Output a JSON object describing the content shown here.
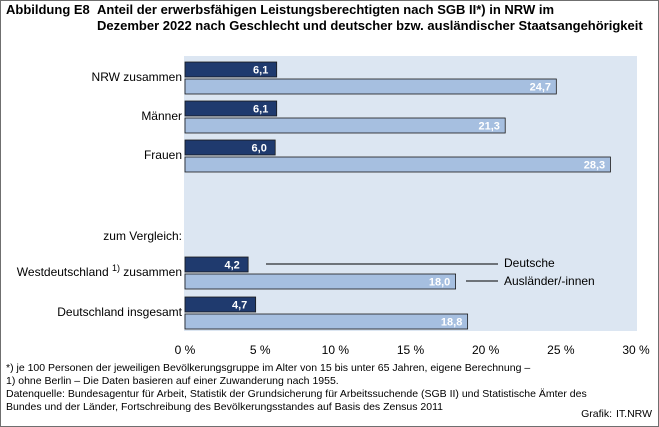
{
  "header": {
    "prefix": "Abbildung E8",
    "line1": "Anteil der erwerbsfähigen Leistungsberechtigten nach SGB II*) in NRW im",
    "line2": "Dezember 2022 nach Geschlecht und deutscher bzw. ausländischer Staatsangehörigkeit"
  },
  "chart_data": {
    "type": "bar",
    "orientation": "horizontal",
    "xlim": [
      0,
      30
    ],
    "xticks": [
      "0 %",
      "5 %",
      "10 %",
      "15 %",
      "20 %",
      "25 %",
      "30 %"
    ],
    "grid": false,
    "categories": [
      "NRW zusammen",
      "Männer",
      "Frauen",
      "Westdeutschland",
      "Deutschland insgesamt"
    ],
    "west_suffix": "zusammen",
    "west_superscript": "1)",
    "group_label": "zum Vergleich:",
    "series": [
      {
        "name": "Deutsche",
        "values": [
          6.1,
          6.1,
          6.0,
          4.2,
          4.7
        ],
        "labels": [
          "6,1",
          "6,1",
          "6,0",
          "4,2",
          "4,7"
        ],
        "color": "#1f3a6e"
      },
      {
        "name": "Ausländer/-innen",
        "values": [
          24.7,
          21.3,
          28.3,
          18.0,
          18.8
        ],
        "labels": [
          "24,7",
          "21,3",
          "28,3",
          "18,0",
          "18,8"
        ],
        "color": "#a6bfe0"
      }
    ],
    "plot_background": "#dce6f2"
  },
  "footnotes": [
    "*) je 100 Personen der jeweiligen Bevölkerungsgruppe im Alter von 15 bis unter 65 Jahren, eigene Berechnung –",
    "1) ohne Berlin – Die Daten basieren auf einer Zuwanderung nach 1955.",
    "Datenquelle:  Bundesagentur für Arbeit, Statistik der Grundsicherung  für Arbeitssuchende (SGB II) und Statistische Ämter des",
    "Bundes und der Länder, Fortschreibung des Bevölkerungsstandes  auf Basis des Zensus 2011"
  ],
  "credit": {
    "label": "Grafik:",
    "source": "IT.NRW"
  }
}
